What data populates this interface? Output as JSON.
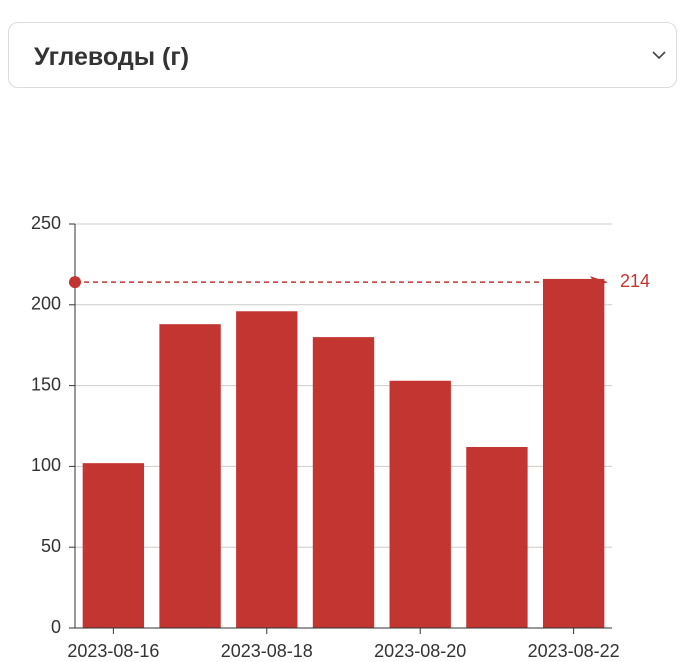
{
  "selector": {
    "value": "Углеводы (г)"
  },
  "chart_data": {
    "type": "bar",
    "categories": [
      "2023-08-16",
      null,
      "2023-08-18",
      null,
      "2023-08-20",
      null,
      "2023-08-22"
    ],
    "values": [
      102,
      188,
      196,
      180,
      153,
      112,
      216
    ],
    "color": "#c23531",
    "ylim": [
      0,
      250
    ],
    "yticks": [
      0,
      50,
      100,
      150,
      200,
      250
    ],
    "grid": true,
    "markline": {
      "value": 214,
      "label": "214"
    }
  }
}
